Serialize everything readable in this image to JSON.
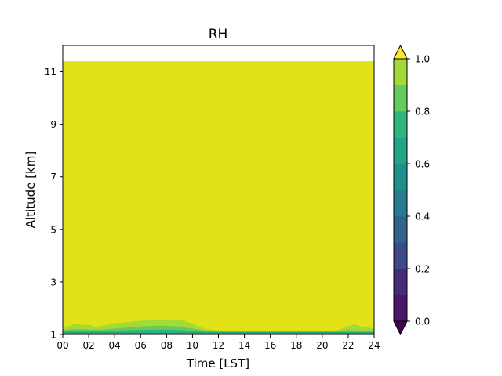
{
  "chart_data": {
    "type": "heatmap",
    "title": "RH",
    "xlabel": "Time [LST]",
    "ylabel": "Altitude [km]",
    "xlim": [
      0,
      24
    ],
    "ylim": [
      1,
      12
    ],
    "x_ticks": [
      0,
      2,
      4,
      6,
      8,
      10,
      12,
      14,
      16,
      18,
      20,
      22,
      24
    ],
    "x_tick_labels": [
      "00",
      "02",
      "04",
      "06",
      "08",
      "10",
      "12",
      "14",
      "16",
      "18",
      "20",
      "22",
      "24"
    ],
    "y_ticks": [
      1,
      3,
      5,
      7,
      9,
      11
    ],
    "y_tick_labels": [
      "1",
      "3",
      "5",
      "7",
      "9",
      "11"
    ],
    "data_top_altitude_km": 11.4,
    "colorbar": {
      "levels": [
        0.0,
        0.1,
        0.2,
        0.3,
        0.4,
        0.5,
        0.6,
        0.7,
        0.8,
        0.9,
        1.0
      ],
      "tick_values": [
        0.0,
        0.2,
        0.4,
        0.6,
        0.8,
        1.0
      ],
      "tick_labels": [
        "0.0",
        "0.2",
        "0.4",
        "0.6",
        "0.8",
        "1.0"
      ],
      "colors": [
        "#481769",
        "#472a7a",
        "#3e4989",
        "#33638d",
        "#297b8e",
        "#1f918c",
        "#21a585",
        "#2fb47c",
        "#65cb5e",
        "#a2da37",
        "#e1e318"
      ],
      "extend": "both",
      "under_color": "#440154",
      "over_color": "#fde725"
    },
    "contour_bands": [
      {
        "name": "RH 0.8-0.9",
        "color": "#a2da37",
        "points": [
          [
            0,
            1.22
          ],
          [
            0.5,
            1.32
          ],
          [
            1,
            1.42
          ],
          [
            1.5,
            1.34
          ],
          [
            2,
            1.38
          ],
          [
            2.5,
            1.26
          ],
          [
            3,
            1.32
          ],
          [
            4,
            1.42
          ],
          [
            5,
            1.46
          ],
          [
            6,
            1.52
          ],
          [
            7,
            1.54
          ],
          [
            8,
            1.56
          ],
          [
            9,
            1.55
          ],
          [
            9.5,
            1.5
          ],
          [
            10,
            1.4
          ],
          [
            11,
            1.2
          ],
          [
            12,
            1.15
          ],
          [
            13,
            1.13
          ],
          [
            21,
            1.13
          ],
          [
            22,
            1.3
          ],
          [
            22.5,
            1.38
          ],
          [
            23,
            1.3
          ],
          [
            24,
            1.22
          ]
        ]
      },
      {
        "name": "RH 0.7-0.8",
        "color": "#65cb5e",
        "points": [
          [
            0,
            1.15
          ],
          [
            1,
            1.2
          ],
          [
            2,
            1.18
          ],
          [
            3,
            1.18
          ],
          [
            4,
            1.22
          ],
          [
            5,
            1.26
          ],
          [
            6,
            1.3
          ],
          [
            7,
            1.32
          ],
          [
            8,
            1.32
          ],
          [
            9,
            1.3
          ],
          [
            10,
            1.22
          ],
          [
            11,
            1.13
          ],
          [
            12,
            1.11
          ],
          [
            21,
            1.11
          ],
          [
            22,
            1.16
          ],
          [
            23,
            1.14
          ],
          [
            24,
            1.12
          ]
        ]
      },
      {
        "name": "RH 0.6-0.7",
        "color": "#2fb47c",
        "points": [
          [
            0,
            1.1
          ],
          [
            1,
            1.13
          ],
          [
            2,
            1.12
          ],
          [
            4,
            1.14
          ],
          [
            6,
            1.17
          ],
          [
            8,
            1.18
          ],
          [
            9,
            1.17
          ],
          [
            10,
            1.12
          ],
          [
            12,
            1.09
          ],
          [
            24,
            1.09
          ]
        ]
      },
      {
        "name": "RH 0.5-0.6",
        "color": "#21a585",
        "points": [
          [
            0,
            1.07
          ],
          [
            24,
            1.07
          ]
        ]
      },
      {
        "name": "RH 0.4-0.5",
        "color": "#297b8e",
        "points": [
          [
            0,
            1.05
          ],
          [
            24,
            1.05
          ]
        ]
      },
      {
        "name": "RH 0.3-0.4",
        "color": "#3e4989",
        "points": [
          [
            0,
            1.03
          ],
          [
            24,
            1.03
          ]
        ]
      }
    ]
  }
}
